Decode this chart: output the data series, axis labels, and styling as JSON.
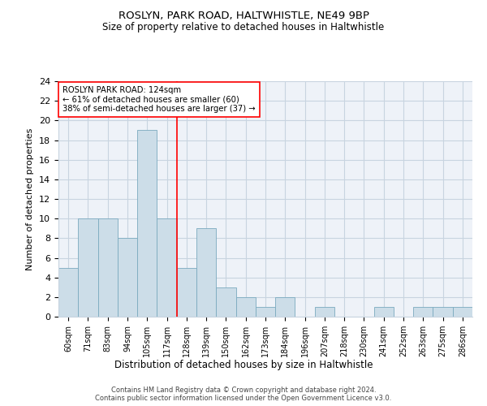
{
  "title1": "ROSLYN, PARK ROAD, HALTWHISTLE, NE49 9BP",
  "title2": "Size of property relative to detached houses in Haltwhistle",
  "xlabel": "Distribution of detached houses by size in Haltwhistle",
  "ylabel": "Number of detached properties",
  "categories": [
    "60sqm",
    "71sqm",
    "83sqm",
    "94sqm",
    "105sqm",
    "117sqm",
    "128sqm",
    "139sqm",
    "150sqm",
    "162sqm",
    "173sqm",
    "184sqm",
    "196sqm",
    "207sqm",
    "218sqm",
    "230sqm",
    "241sqm",
    "252sqm",
    "263sqm",
    "275sqm",
    "286sqm"
  ],
  "values": [
    5,
    10,
    10,
    8,
    19,
    10,
    5,
    9,
    3,
    2,
    1,
    2,
    0,
    1,
    0,
    0,
    1,
    0,
    1,
    1,
    1
  ],
  "bar_color": "#ccdde8",
  "bar_edge_color": "#7aaabf",
  "vline_x": 5.5,
  "vline_color": "red",
  "annotation_title": "ROSLYN PARK ROAD: 124sqm",
  "annotation_line1": "← 61% of detached houses are smaller (60)",
  "annotation_line2": "38% of semi-detached houses are larger (37) →",
  "annotation_box_color": "white",
  "annotation_box_edge": "red",
  "ylim": [
    0,
    24
  ],
  "yticks": [
    0,
    2,
    4,
    6,
    8,
    10,
    12,
    14,
    16,
    18,
    20,
    22,
    24
  ],
  "footer1": "Contains HM Land Registry data © Crown copyright and database right 2024.",
  "footer2": "Contains public sector information licensed under the Open Government Licence v3.0.",
  "bg_color": "#eef2f8",
  "grid_color": "#c8d4e0"
}
